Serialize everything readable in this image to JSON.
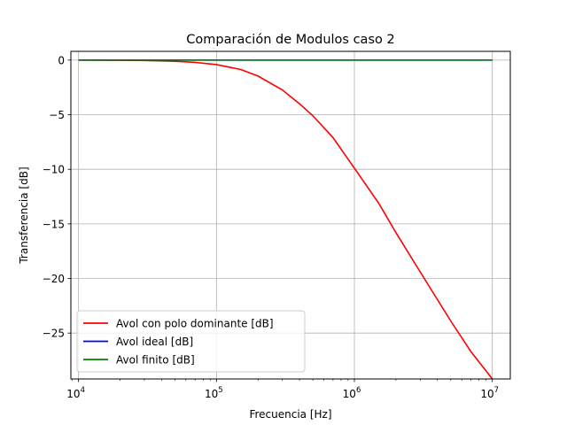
{
  "chart_data": {
    "type": "line",
    "title": "Comparación de Modulos caso 2",
    "xlabel": "Frecuencia [Hz]",
    "ylabel": "Transferencia [dB]",
    "xscale": "log",
    "xlim": [
      8800,
      13500000
    ],
    "ylim": [
      -29.2,
      0.8
    ],
    "grid": true,
    "legend_position": "lower-left",
    "x_ticks": [
      {
        "value": 10000,
        "base": "10",
        "exp": "4"
      },
      {
        "value": 100000,
        "base": "10",
        "exp": "5"
      },
      {
        "value": 1000000,
        "base": "10",
        "exp": "6"
      },
      {
        "value": 10000000,
        "base": "10",
        "exp": "7"
      }
    ],
    "y_ticks": [
      {
        "value": 0,
        "label": "0"
      },
      {
        "value": -5,
        "label": "−5"
      },
      {
        "value": -10,
        "label": "−10"
      },
      {
        "value": -15,
        "label": "−15"
      },
      {
        "value": -20,
        "label": "−20"
      },
      {
        "value": -25,
        "label": "−25"
      }
    ],
    "series": [
      {
        "name": "Avol con polo dominante [dB]",
        "color": "#ff0000",
        "x": [
          10000,
          20000,
          30000,
          50000,
          70000,
          100000,
          150000,
          200000,
          300000,
          400000,
          500000,
          700000,
          1000000,
          1500000,
          2000000,
          3000000,
          5000000,
          7000000,
          10000000
        ],
        "y": [
          0,
          -0.02,
          -0.04,
          -0.11,
          -0.21,
          -0.41,
          -0.86,
          -1.46,
          -2.73,
          -4.0,
          -5.1,
          -7.1,
          -9.9,
          -13.1,
          -15.8,
          -19.4,
          -23.9,
          -26.7,
          -29.2
        ]
      },
      {
        "name": "Avol ideal [dB]",
        "color": "#0000ff",
        "x": [
          10000,
          10000000
        ],
        "y": [
          0,
          0
        ]
      },
      {
        "name": "Avol finito [dB]",
        "color": "#008000",
        "x": [
          10000,
          10000000
        ],
        "y": [
          0,
          0
        ]
      }
    ]
  }
}
